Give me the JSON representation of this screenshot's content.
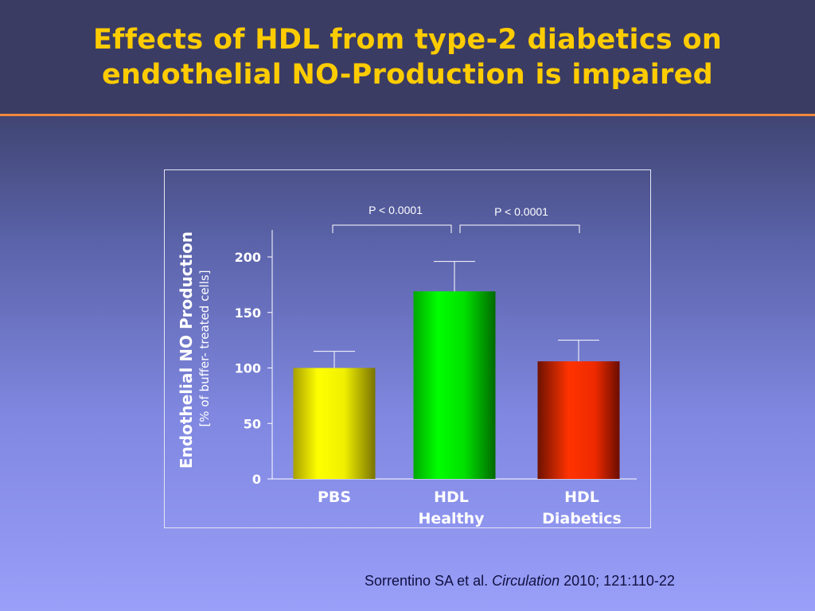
{
  "slide": {
    "title_line1": "Effects of HDL from type-2 diabetics on",
    "title_line2": "endothelial NO-Production is impaired",
    "citation_authors": "Sorrentino SA et al. ",
    "citation_journal": "Circulation",
    "citation_details": " 2010; 121:110-22"
  },
  "colors": {
    "title": "#ffcc00",
    "accent_rule": "#f0883a",
    "pbs_bar": "#f2f200",
    "hdl_healthy_bar": "#00dd00",
    "hdl_diabetics_bar": "#ff3300"
  },
  "chart_data": {
    "type": "bar",
    "categories": [
      "PBS",
      "HDL Healthy",
      "HDL Diabetics"
    ],
    "category_label_lines": [
      [
        "PBS"
      ],
      [
        "HDL",
        "Healthy"
      ],
      [
        "HDL",
        "Diabetics"
      ]
    ],
    "values": [
      100,
      169,
      106
    ],
    "error_upper": [
      115,
      196,
      125
    ],
    "ylabel": "Endothelial NO Production",
    "ylabel_unit": "[% of buffer- treated cells]",
    "ylim": [
      0,
      200
    ],
    "yticks": [
      0,
      50,
      100,
      150,
      200
    ],
    "ytick_labels": [
      "0",
      "50",
      "100",
      "150",
      "200"
    ],
    "grid": false,
    "annotations": [
      {
        "text": "P < 0.0001",
        "from": "PBS",
        "to": "HDL Healthy"
      },
      {
        "text": "P < 0.0001",
        "from": "HDL Healthy",
        "to": "HDL Diabetics"
      }
    ]
  }
}
